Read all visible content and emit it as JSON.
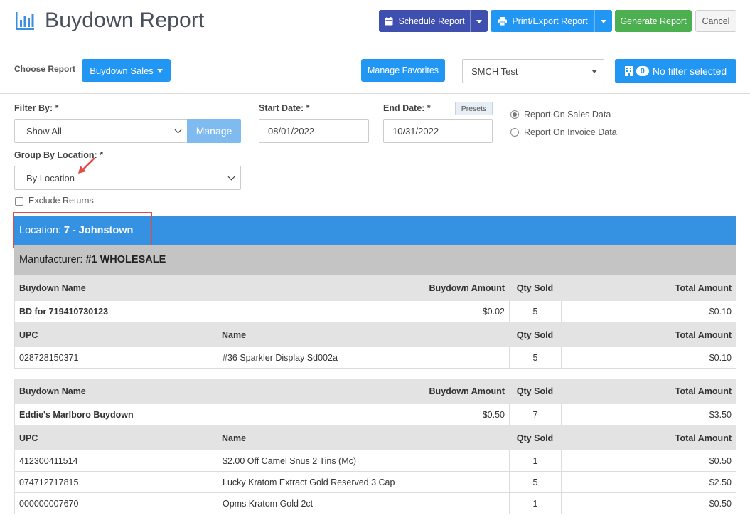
{
  "header": {
    "title": "Buydown Report",
    "schedule_label": "Schedule Report",
    "print_label": "Print/Export Report",
    "generate_label": "Generate Report",
    "cancel_label": "Cancel"
  },
  "choose": {
    "label": "Choose Report",
    "report_button": "Buydown Sales",
    "favorites_button": "Manage Favorites",
    "store_value": "SMCH Test",
    "filter_count": "0",
    "filter_label": "No filter selected"
  },
  "filters": {
    "filter_by_label": "Filter By: *",
    "filter_by_value": "Show All",
    "manage_label": "Manage",
    "start_label": "Start Date: *",
    "start_value": "08/01/2022",
    "end_label": "End Date: *",
    "end_value": "10/31/2022",
    "presets_label": "Presets",
    "radio_sales": "Report On Sales Data",
    "radio_invoice": "Report On Invoice Data",
    "group_label": "Group By Location: *",
    "group_value": "By Location",
    "exclude_label": "Exclude Returns"
  },
  "report": {
    "location_prefix": "Location:",
    "location_name": "7 - Johnstown",
    "manufacturer_prefix": "Manufacturer:",
    "manufacturer_name": "#1 WHOLESALE",
    "headers": {
      "buydown_name": "Buydown Name",
      "buydown_amount": "Buydown Amount",
      "qty_sold": "Qty Sold",
      "total_amount": "Total Amount",
      "upc": "UPC",
      "name": "Name"
    },
    "buydowns": [
      {
        "name": "BD for 719410730123",
        "amount": "$0.02",
        "qty": "5",
        "total": "$0.10",
        "items": [
          {
            "upc": "028728150371",
            "name": "#36 Sparkler Display Sd002a",
            "qty": "5",
            "total": "$0.10"
          }
        ]
      },
      {
        "name": "Eddie's Marlboro Buydown",
        "amount": "$0.50",
        "qty": "7",
        "total": "$3.50",
        "items": [
          {
            "upc": "412300411514",
            "name": "$2.00 Off Camel Snus 2 Tins (Mc)",
            "qty": "1",
            "total": "$0.50"
          },
          {
            "upc": "074712717815",
            "name": "Lucky Kratom Extract Gold Reserved 3 Cap",
            "qty": "5",
            "total": "$2.50"
          },
          {
            "upc": "000000007670",
            "name": "Opms Kratom Gold 2ct",
            "qty": "1",
            "total": "$0.50"
          }
        ]
      }
    ]
  },
  "colors": {
    "primary_blue": "#2196f3",
    "indigo": "#3f4fb0",
    "green": "#4caf50",
    "location_bar": "#3592e2",
    "manufacturer_bar": "#c4c4c4",
    "highlight_red": "#e34b4b"
  }
}
